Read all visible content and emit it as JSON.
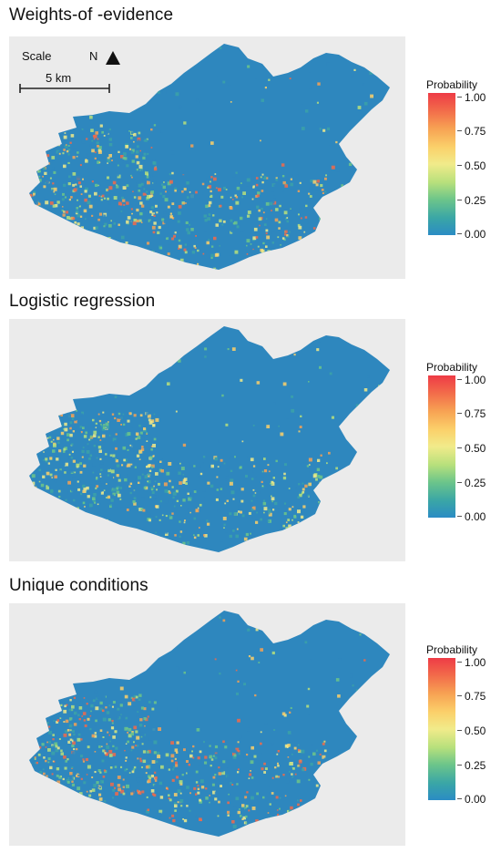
{
  "panels": [
    {
      "title": "Weights-of -evidence",
      "legend": {
        "title": "Probability",
        "labels": [
          "1.00",
          "0.75",
          "0.50",
          "0.25",
          "0.00"
        ]
      },
      "hotspot_level": 0.45
    },
    {
      "title": "Logistic regression",
      "legend": {
        "title": "Probability",
        "labels": [
          "1.00",
          "0.75",
          "0.50",
          "0.25",
          "0.00"
        ]
      },
      "hotspot_level": 0.25
    },
    {
      "title": "Unique conditions",
      "legend": {
        "title": "Probability",
        "labels": [
          "1.00",
          "0.75",
          "0.50",
          "0.25",
          "0.00"
        ]
      },
      "hotspot_level": 0.55
    }
  ],
  "map_annotations": {
    "scale_label": "Scale",
    "scale_distance": "5 km",
    "north_label": "N"
  },
  "colors": {
    "panel_background": "#ebebeb",
    "base_blue": "#2e87be",
    "low": "#2b8cc4",
    "mid": "#f1eb8a",
    "high": "#ee3b46"
  }
}
